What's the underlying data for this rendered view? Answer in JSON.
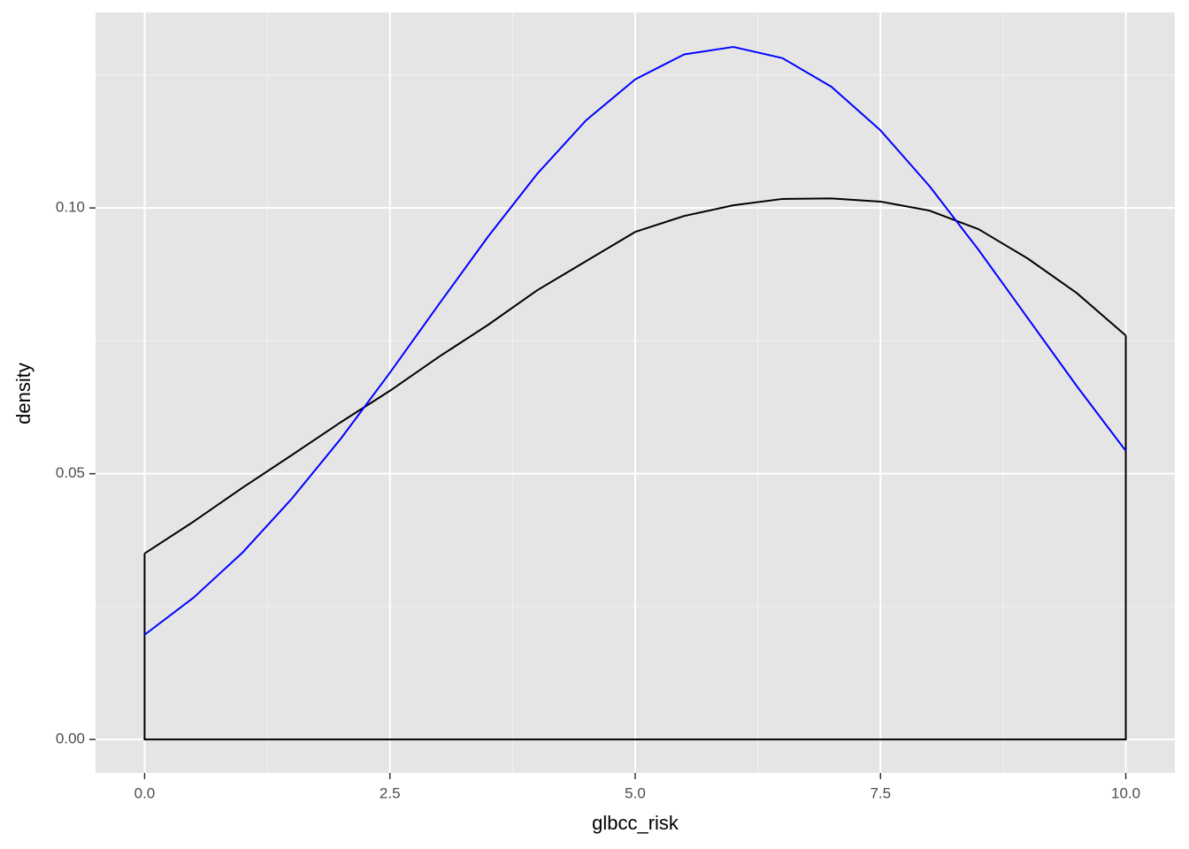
{
  "chart_data": {
    "type": "line",
    "x_label": "glbcc_risk",
    "y_label": "density",
    "x": [
      0,
      0.5,
      1,
      1.5,
      2,
      2.5,
      3,
      3.5,
      4,
      4.5,
      5,
      5.5,
      6,
      6.5,
      7,
      7.5,
      8,
      8.5,
      9,
      9.5,
      10
    ],
    "series": [
      {
        "color": "#000000",
        "closed_to_zero": true,
        "values": [
          0.035,
          0.041,
          0.0474,
          0.0535,
          0.0597,
          0.0656,
          0.072,
          0.078,
          0.0845,
          0.09,
          0.0955,
          0.0985,
          0.1005,
          0.1017,
          0.1018,
          0.1012,
          0.0995,
          0.096,
          0.0905,
          0.084,
          0.076
        ]
      },
      {
        "color": "#0000ff",
        "values": [
          0.0197,
          0.0267,
          0.0352,
          0.0453,
          0.0566,
          0.069,
          0.0819,
          0.0946,
          0.1064,
          0.1165,
          0.1242,
          0.1289,
          0.1303,
          0.1282,
          0.1228,
          0.1146,
          0.1041,
          0.0921,
          0.0793,
          0.0665,
          0.0543
        ]
      }
    ],
    "xlim": [
      -0.5,
      10.5
    ],
    "ylim": [
      -0.0063,
      0.1368
    ],
    "xticks": [
      {
        "value": 0,
        "label": "0.0"
      },
      2.5,
      {
        "value": 5,
        "label": "5.0"
      },
      7.5,
      {
        "value": 10,
        "label": "10.0"
      }
    ],
    "yticks": [
      {
        "value": 0,
        "label": "0.00"
      },
      {
        "value": 0.05,
        "label": "0.05"
      },
      {
        "value": 0.1,
        "label": "0.10"
      }
    ],
    "x_minor_grid": [
      1.25,
      3.75,
      6.25,
      8.75
    ],
    "y_minor_grid": [
      0.025,
      0.075,
      0.125
    ],
    "grid": true,
    "panel_color": "#e5e5e5"
  }
}
